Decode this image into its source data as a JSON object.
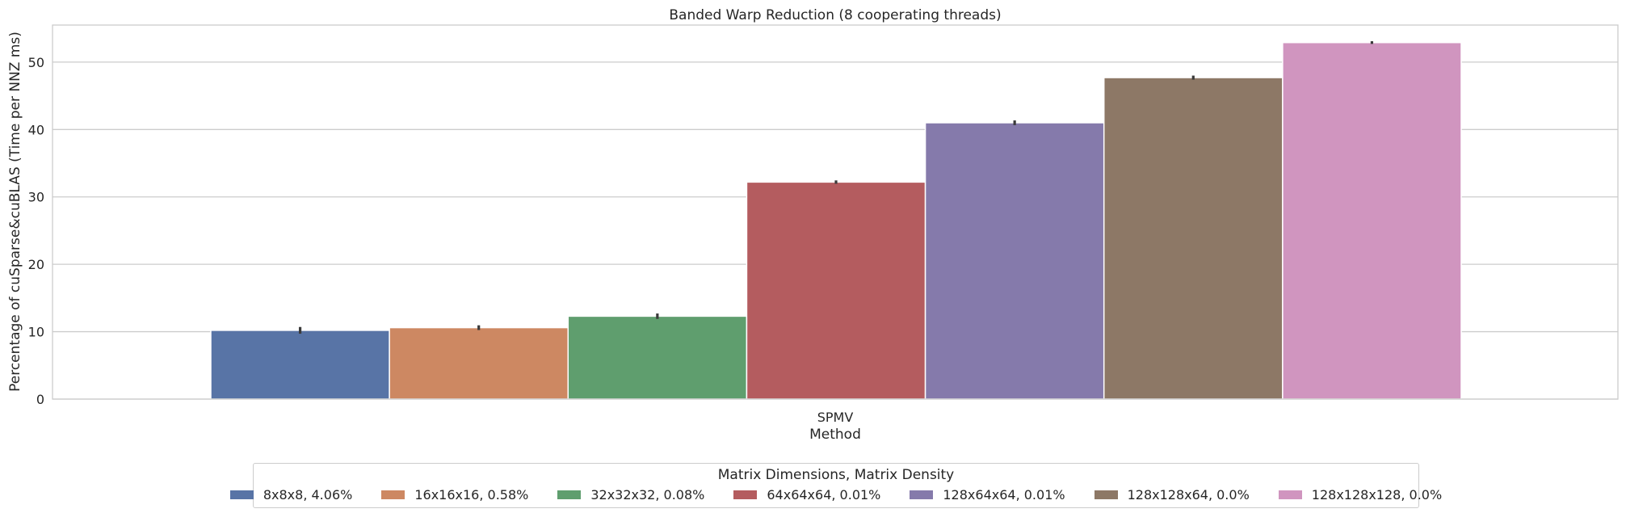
{
  "chart_data": {
    "type": "bar",
    "title": "Banded Warp Reduction (8 cooperating threads)",
    "xlabel": "Method",
    "ylabel": "Percentage of cuSparse&cuBLAS (Time per NNZ ms)",
    "categories": [
      "SPMV"
    ],
    "ylim": [
      0,
      55.5
    ],
    "yticks": [
      "0",
      "10",
      "20",
      "30",
      "40",
      "50"
    ],
    "grid": true,
    "legend_title": "Matrix Dimensions, Matrix Density",
    "legend_position": "bottom-center",
    "series": [
      {
        "name": "8x8x8, 4.06%",
        "values": [
          10.2
        ],
        "err": [
          0.5
        ],
        "color": "#5874a6"
      },
      {
        "name": "16x16x16, 0.58%",
        "values": [
          10.6
        ],
        "err": [
          0.35
        ],
        "color": "#cd8862"
      },
      {
        "name": "32x32x32, 0.08%",
        "values": [
          12.3
        ],
        "err": [
          0.4
        ],
        "color": "#5f9e6e"
      },
      {
        "name": "64x64x64, 0.01%",
        "values": [
          32.2
        ],
        "err": [
          0.25
        ],
        "color": "#b45c5f"
      },
      {
        "name": "128x64x64, 0.01%",
        "values": [
          41.0
        ],
        "err": [
          0.35
        ],
        "color": "#857aab"
      },
      {
        "name": "128x128x64, 0.0%",
        "values": [
          47.7
        ],
        "err": [
          0.3
        ],
        "color": "#8d7866"
      },
      {
        "name": "128x128x128, 0.0%",
        "values": [
          52.9
        ],
        "err": [
          0.2
        ],
        "color": "#d095bf"
      }
    ]
  }
}
